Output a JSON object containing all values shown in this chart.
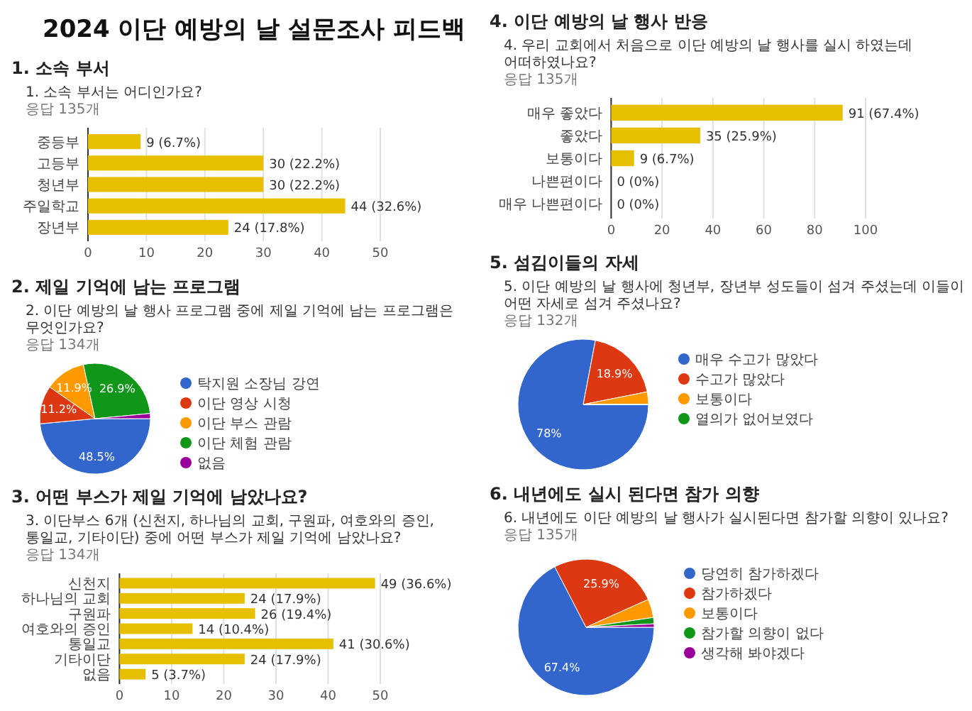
{
  "chart_data": [
    {
      "type": "bar",
      "orientation": "horizontal",
      "title": "1. 소속 부서",
      "subtitle": "1. 소속 부서는 어디인가요?",
      "annotations": [
        "2024 이단 예방의 날 설문조사 피드백",
        "응답 135개"
      ],
      "categories": [
        "중등부",
        "고등부",
        "청년부",
        "주일학교",
        "장년부"
      ],
      "values": [
        9,
        30,
        30,
        44,
        24
      ],
      "value_labels": [
        "9 (6.7%)",
        "30 (22.2%)",
        "30 (22.2%)",
        "44 (32.6%)",
        "24 (17.8%)"
      ],
      "color": "#e6c000",
      "xlim": [
        0,
        50
      ],
      "xticks": [
        0,
        10,
        20,
        30,
        40,
        50
      ],
      "grid": "x"
    },
    {
      "type": "pie",
      "title": "2. 제일 기억에 남는 프로그램",
      "subtitle": "2. 이단 예방의 날 행사 프로그램 중에 제일 기억에 남는 프로그램은 무엇인가요?",
      "annotations": [
        "응답 134개"
      ],
      "categories": [
        "탁지원 소장님 강연",
        "이단 영상 시청",
        "이단 부스 관람",
        "이단 체험 관람",
        "없음"
      ],
      "values": [
        48.5,
        11.2,
        11.9,
        26.9,
        1.5
      ],
      "value_labels": [
        "48.5%",
        "11.2%",
        "11.9%",
        "26.9%",
        null
      ],
      "colors": [
        "#3366cc",
        "#dc3912",
        "#ff9900",
        "#109618",
        "#990099"
      ],
      "legend": "right"
    },
    {
      "type": "bar",
      "orientation": "horizontal",
      "title": "3. 어떤 부스가 제일 기억에 남았나요?",
      "subtitle": "3. 이단부스 6개 (신천지, 하나님의 교회, 구원파, 여호와의 증인, 통일교, 기타이단) 중에 어떤 부스가 제일 기억에 남았나요?",
      "annotations": [
        "응답 134개"
      ],
      "categories": [
        "신천지",
        "하나님의 교회",
        "구원파",
        "여호와의 증인",
        "통일교",
        "기타이단",
        "없음"
      ],
      "values": [
        49,
        24,
        26,
        14,
        41,
        24,
        5
      ],
      "value_labels": [
        "49 (36.6%)",
        "24 (17.9%)",
        "26 (19.4%)",
        "14 (10.4%)",
        "41 (30.6%)",
        "24 (17.9%)",
        "5 (3.7%)"
      ],
      "color": "#e6c000",
      "xlim": [
        0,
        50
      ],
      "xticks": [
        0,
        10,
        20,
        30,
        40,
        50
      ],
      "grid": "x"
    },
    {
      "type": "bar",
      "orientation": "horizontal",
      "title": "4. 이단 예방의 날 행사 반응",
      "subtitle": "4. 우리 교회에서 처음으로 이단 예방의 날 행사를 실시 하였는데 어떠하였나요?",
      "annotations": [
        "응답 135개"
      ],
      "categories": [
        "매우 좋았다",
        "좋았다",
        "보통이다",
        "나쁜편이다",
        "매우 나쁜편이다"
      ],
      "values": [
        91,
        35,
        9,
        0,
        0
      ],
      "value_labels": [
        "91 (67.4%)",
        "35 (25.9%)",
        "9 (6.7%)",
        "0 (0%)",
        "0 (0%)"
      ],
      "color": "#e6c000",
      "xlim": [
        0,
        100
      ],
      "xticks": [
        0,
        20,
        40,
        60,
        80,
        100
      ],
      "grid": "x"
    },
    {
      "type": "pie",
      "title": "5. 섬김이들의 자세",
      "subtitle": "5. 이단 예방의 날 행사에 청년부, 장년부 성도들이 섬겨 주셨는데 이들이 어떤 자세로 섬겨 주셨나요?",
      "annotations": [
        "응답 132개"
      ],
      "categories": [
        "매우 수고가 많았다",
        "수고가 많았다",
        "보통이다",
        "열의가 없어보였다"
      ],
      "values": [
        78,
        18.9,
        3.1,
        0
      ],
      "value_labels": [
        "78%",
        "18.9%",
        null,
        null
      ],
      "colors": [
        "#3366cc",
        "#dc3912",
        "#ff9900",
        "#109618"
      ],
      "legend": "right"
    },
    {
      "type": "pie",
      "title": "6. 내년에도 실시 된다면 참가 의향",
      "subtitle": "6. 내년에도 이단 예방의 날 행사가 실시된다면 참가할 의향이 있나요?",
      "annotations": [
        "응답 135개"
      ],
      "categories": [
        "당연히 참가하겠다",
        "참가하겠다",
        "보통이다",
        "참가할 의향이 없다",
        "생각해 봐야겠다"
      ],
      "values": [
        67.4,
        25.9,
        4.4,
        1.5,
        0.8
      ],
      "value_labels": [
        "67.4%",
        "25.9%",
        null,
        null,
        null
      ],
      "colors": [
        "#3366cc",
        "#dc3912",
        "#ff9900",
        "#109618",
        "#990099"
      ],
      "legend": "right"
    }
  ]
}
